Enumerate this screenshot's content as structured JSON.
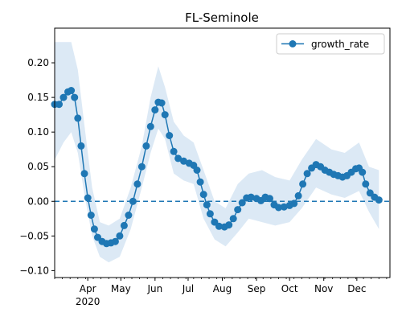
{
  "chart_data": {
    "type": "line",
    "title": "FL-Seminole",
    "xlabel": "",
    "ylabel": "",
    "x_range": [
      "2020-03-02",
      "2020-12-31"
    ],
    "ylim": [
      -0.11,
      0.25
    ],
    "y_ticks": [
      -0.1,
      -0.05,
      0.0,
      0.05,
      0.1,
      0.15,
      0.2
    ],
    "y_tick_labels": [
      "−0.10",
      "−0.05",
      "0.00",
      "0.05",
      "0.10",
      "0.15",
      "0.20"
    ],
    "x_tick_labels": [
      {
        "date": "2020-04-01",
        "label": "Apr",
        "sublabel": "2020"
      },
      {
        "date": "2020-05-01",
        "label": "May",
        "sublabel": ""
      },
      {
        "date": "2020-06-01",
        "label": "Jun",
        "sublabel": ""
      },
      {
        "date": "2020-07-01",
        "label": "Jul",
        "sublabel": ""
      },
      {
        "date": "2020-08-01",
        "label": "Aug",
        "sublabel": ""
      },
      {
        "date": "2020-09-01",
        "label": "Sep",
        "sublabel": ""
      },
      {
        "date": "2020-10-01",
        "label": "Oct",
        "sublabel": ""
      },
      {
        "date": "2020-11-01",
        "label": "Nov",
        "sublabel": ""
      },
      {
        "date": "2020-12-01",
        "label": "Dec",
        "sublabel": ""
      }
    ],
    "grid": false,
    "legend": {
      "placement": "top-right",
      "entries": [
        "growth_rate"
      ]
    },
    "reference_line": {
      "y": 0.0,
      "style": "dashed"
    },
    "colors": {
      "line": "#1f77b4",
      "band": "#dce9f5",
      "reference": "#1f77b4"
    },
    "series": [
      {
        "name": "growth_rate",
        "marker": "circle",
        "points": [
          [
            "2020-03-02",
            0.14
          ],
          [
            "2020-03-06",
            0.14
          ],
          [
            "2020-03-10",
            0.15
          ],
          [
            "2020-03-14",
            0.158
          ],
          [
            "2020-03-17",
            0.16
          ],
          [
            "2020-03-20",
            0.15
          ],
          [
            "2020-03-23",
            0.12
          ],
          [
            "2020-03-26",
            0.08
          ],
          [
            "2020-03-29",
            0.04
          ],
          [
            "2020-04-01",
            0.005
          ],
          [
            "2020-04-04",
            -0.02
          ],
          [
            "2020-04-07",
            -0.04
          ],
          [
            "2020-04-10",
            -0.052
          ],
          [
            "2020-04-14",
            -0.058
          ],
          [
            "2020-04-18",
            -0.061
          ],
          [
            "2020-04-22",
            -0.06
          ],
          [
            "2020-04-26",
            -0.058
          ],
          [
            "2020-04-30",
            -0.05
          ],
          [
            "2020-05-04",
            -0.035
          ],
          [
            "2020-05-08",
            -0.02
          ],
          [
            "2020-05-12",
            0.0
          ],
          [
            "2020-05-16",
            0.025
          ],
          [
            "2020-05-20",
            0.05
          ],
          [
            "2020-05-24",
            0.08
          ],
          [
            "2020-05-28",
            0.108
          ],
          [
            "2020-06-01",
            0.132
          ],
          [
            "2020-06-04",
            0.143
          ],
          [
            "2020-06-07",
            0.142
          ],
          [
            "2020-06-10",
            0.125
          ],
          [
            "2020-06-14",
            0.095
          ],
          [
            "2020-06-18",
            0.072
          ],
          [
            "2020-06-22",
            0.062
          ],
          [
            "2020-06-27",
            0.058
          ],
          [
            "2020-07-02",
            0.055
          ],
          [
            "2020-07-06",
            0.052
          ],
          [
            "2020-07-09",
            0.045
          ],
          [
            "2020-07-12",
            0.028
          ],
          [
            "2020-07-15",
            0.01
          ],
          [
            "2020-07-18",
            -0.005
          ],
          [
            "2020-07-21",
            -0.018
          ],
          [
            "2020-07-25",
            -0.03
          ],
          [
            "2020-07-29",
            -0.036
          ],
          [
            "2020-08-03",
            -0.037
          ],
          [
            "2020-08-07",
            -0.034
          ],
          [
            "2020-08-11",
            -0.025
          ],
          [
            "2020-08-15",
            -0.012
          ],
          [
            "2020-08-19",
            -0.002
          ],
          [
            "2020-08-23",
            0.005
          ],
          [
            "2020-08-27",
            0.006
          ],
          [
            "2020-09-01",
            0.004
          ],
          [
            "2020-09-05",
            0.001
          ],
          [
            "2020-09-09",
            0.006
          ],
          [
            "2020-09-13",
            0.004
          ],
          [
            "2020-09-17",
            -0.005
          ],
          [
            "2020-09-21",
            -0.009
          ],
          [
            "2020-09-26",
            -0.008
          ],
          [
            "2020-10-01",
            -0.006
          ],
          [
            "2020-10-05",
            -0.003
          ],
          [
            "2020-10-09",
            0.008
          ],
          [
            "2020-10-13",
            0.025
          ],
          [
            "2020-10-17",
            0.04
          ],
          [
            "2020-10-21",
            0.048
          ],
          [
            "2020-10-25",
            0.053
          ],
          [
            "2020-10-29",
            0.05
          ],
          [
            "2020-11-02",
            0.045
          ],
          [
            "2020-11-06",
            0.042
          ],
          [
            "2020-11-10",
            0.039
          ],
          [
            "2020-11-14",
            0.037
          ],
          [
            "2020-11-18",
            0.035
          ],
          [
            "2020-11-22",
            0.037
          ],
          [
            "2020-11-26",
            0.042
          ],
          [
            "2020-11-30",
            0.047
          ],
          [
            "2020-12-03",
            0.048
          ],
          [
            "2020-12-06",
            0.042
          ],
          [
            "2020-12-09",
            0.025
          ],
          [
            "2020-12-13",
            0.012
          ],
          [
            "2020-12-17",
            0.006
          ],
          [
            "2020-12-21",
            0.002
          ]
        ],
        "band": [
          [
            "2020-03-02",
            0.06,
            0.23
          ],
          [
            "2020-03-10",
            0.085,
            0.23
          ],
          [
            "2020-03-17",
            0.1,
            0.23
          ],
          [
            "2020-03-23",
            0.07,
            0.19
          ],
          [
            "2020-03-29",
            0.01,
            0.11
          ],
          [
            "2020-04-05",
            -0.05,
            0.02
          ],
          [
            "2020-04-12",
            -0.08,
            -0.03
          ],
          [
            "2020-04-20",
            -0.088,
            -0.035
          ],
          [
            "2020-04-30",
            -0.08,
            -0.025
          ],
          [
            "2020-05-10",
            -0.04,
            0.02
          ],
          [
            "2020-05-20",
            0.02,
            0.08
          ],
          [
            "2020-05-28",
            0.07,
            0.15
          ],
          [
            "2020-06-04",
            0.105,
            0.195
          ],
          [
            "2020-06-10",
            0.09,
            0.165
          ],
          [
            "2020-06-18",
            0.04,
            0.115
          ],
          [
            "2020-06-27",
            0.03,
            0.095
          ],
          [
            "2020-07-06",
            0.025,
            0.085
          ],
          [
            "2020-07-15",
            -0.025,
            0.045
          ],
          [
            "2020-07-25",
            -0.055,
            0.0
          ],
          [
            "2020-08-04",
            -0.065,
            -0.01
          ],
          [
            "2020-08-15",
            -0.045,
            0.025
          ],
          [
            "2020-08-25",
            -0.025,
            0.04
          ],
          [
            "2020-09-06",
            -0.03,
            0.045
          ],
          [
            "2020-09-18",
            -0.035,
            0.035
          ],
          [
            "2020-10-01",
            -0.03,
            0.03
          ],
          [
            "2020-10-12",
            -0.01,
            0.06
          ],
          [
            "2020-10-25",
            0.02,
            0.09
          ],
          [
            "2020-11-08",
            0.01,
            0.075
          ],
          [
            "2020-11-20",
            0.005,
            0.07
          ],
          [
            "2020-12-03",
            0.015,
            0.085
          ],
          [
            "2020-12-12",
            -0.015,
            0.05
          ],
          [
            "2020-12-21",
            -0.04,
            0.045
          ]
        ]
      }
    ]
  }
}
